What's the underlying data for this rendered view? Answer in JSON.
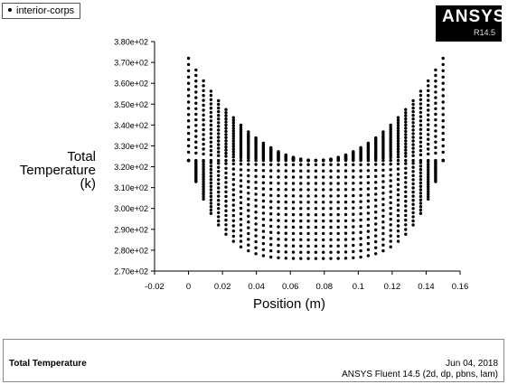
{
  "legend": {
    "label": "interior-corps"
  },
  "logo": {
    "brand": "ANSYS",
    "version": "R14.5"
  },
  "footer": {
    "title": "Total Temperature",
    "date": "Jun 04, 2018",
    "product": "ANSYS Fluent 14.5 (2d, dp, pbns, lam)"
  },
  "chart_data": {
    "type": "scatter",
    "ylabel_lines": [
      "Total",
      "Temperature",
      "(k)"
    ],
    "xlabel": "Position (m)",
    "xlim": [
      -0.02,
      0.16
    ],
    "ylim": [
      270,
      380
    ],
    "x_ticks": [
      "-0.02",
      "0",
      "0.02",
      "0.04",
      "0.06",
      "0.08",
      "0.1",
      "0.12",
      "0.14",
      "0.16"
    ],
    "y_ticks": [
      "2.70e+02",
      "2.80e+02",
      "2.90e+02",
      "3.00e+02",
      "3.10e+02",
      "3.20e+02",
      "3.30e+02",
      "3.40e+02",
      "3.50e+02",
      "3.60e+02",
      "3.70e+02",
      "3.80e+02"
    ],
    "series": [
      {
        "x_range": [
          0,
          0.15
        ],
        "upper_curves": {
          "center_value": 323,
          "edge_values": [
            372,
            369,
            366,
            363,
            360,
            357,
            354,
            351,
            348,
            345,
            342,
            339,
            336,
            333,
            330,
            327
          ]
        },
        "flat_line": 323,
        "lower_curves": {
          "center_values": [
            276,
            279,
            282,
            285,
            288,
            291,
            294,
            297,
            300,
            303,
            306,
            309,
            312,
            315,
            318,
            321
          ],
          "edge_value": 323
        }
      }
    ]
  }
}
